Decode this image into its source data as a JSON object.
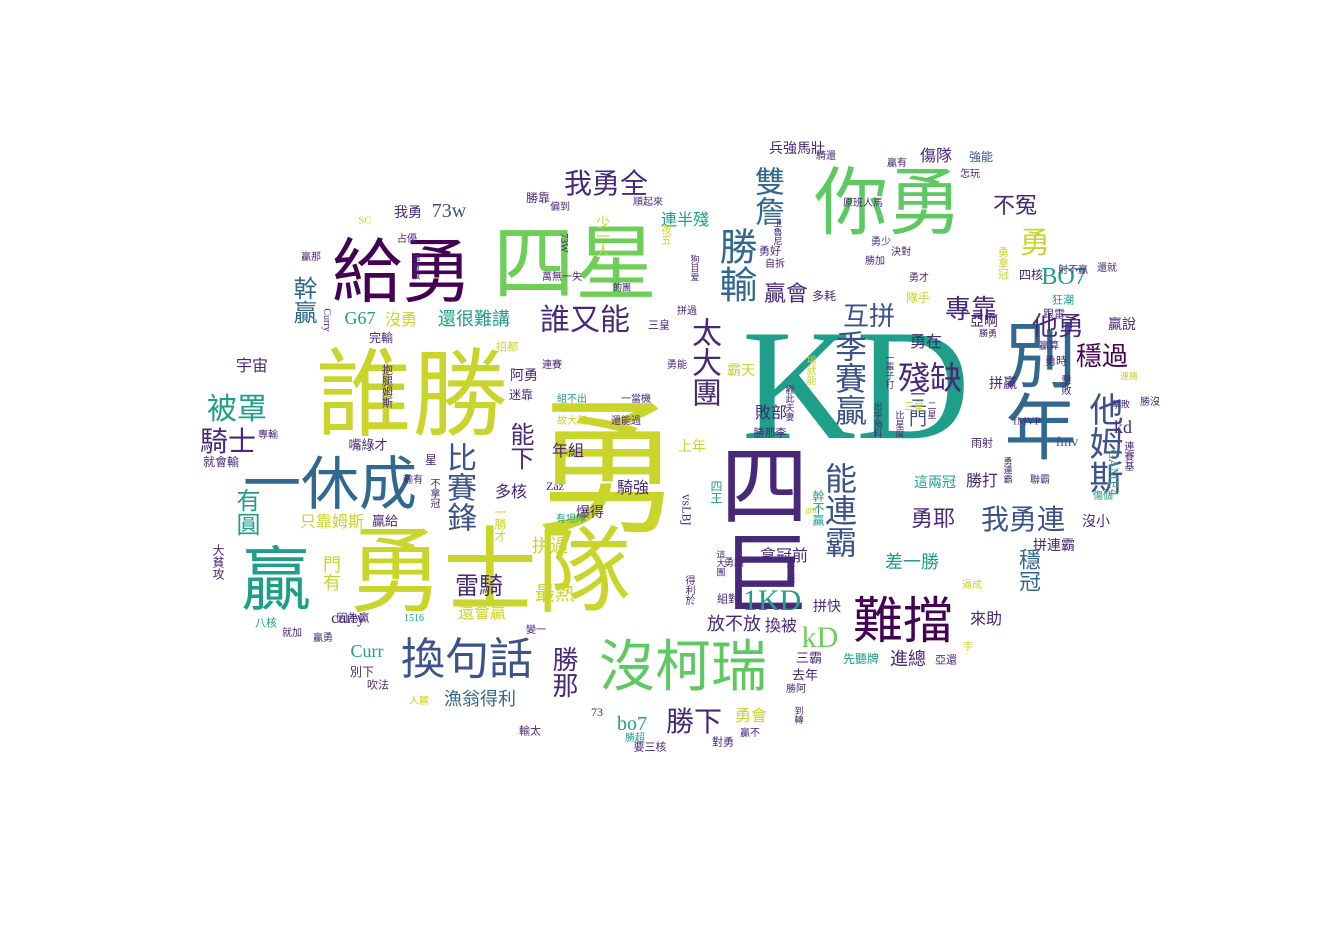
{
  "palette": {
    "p0": "#440154",
    "p1": "#3b528b",
    "p2": "#21918c",
    "p3": "#5ec962",
    "p4": "#c9d52a",
    "p5": "#31688e",
    "p6": "#1f9e89",
    "p7": "#482878",
    "p8": "#6ece58",
    "p9": "#b5de2b",
    "pa": "#26828e",
    "pb": "#3e4a89"
  },
  "words": [
    {
      "text": "KD",
      "c": "p6",
      "lat": true
    },
    {
      "text": "勇",
      "c": "p4"
    },
    {
      "text": "誰勝",
      "c": "p4"
    },
    {
      "text": "勇士隊",
      "c": "p4"
    },
    {
      "text": "四巨",
      "c": "p7"
    },
    {
      "text": "四星",
      "c": "p8"
    },
    {
      "text": "你勇",
      "c": "p3"
    },
    {
      "text": "給勇",
      "c": "p0"
    },
    {
      "text": "別年",
      "c": "p5"
    },
    {
      "text": "一休成",
      "c": "p5"
    },
    {
      "text": "沒柯瑞",
      "c": "p3"
    },
    {
      "text": "換句話",
      "c": "p1"
    },
    {
      "text": "難擋",
      "c": "p0"
    },
    {
      "text": "贏",
      "c": "p6"
    },
    {
      "text": "勝輸",
      "c": "p5"
    },
    {
      "text": "他姆斯",
      "c": "p1"
    },
    {
      "text": "誰又能",
      "c": "p7"
    },
    {
      "text": "我勇全",
      "c": "p7"
    },
    {
      "text": "雙詹",
      "c": "p5"
    },
    {
      "text": "比賽鋒",
      "c": "p1"
    },
    {
      "text": "太大團",
      "c": "p7"
    },
    {
      "text": "季賽贏",
      "c": "p1"
    },
    {
      "text": "殘缺",
      "c": "p7"
    },
    {
      "text": "能連霸",
      "c": "p1"
    },
    {
      "text": "我勇連",
      "c": "p1"
    },
    {
      "text": "專靠",
      "c": "p7"
    },
    {
      "text": "互拼",
      "c": "p1"
    },
    {
      "text": "贏會",
      "c": "p7"
    },
    {
      "text": "他勇",
      "c": "p7"
    },
    {
      "text": "穩過",
      "c": "p0"
    },
    {
      "text": "不冤",
      "c": "p7"
    },
    {
      "text": "勇",
      "c": "p4"
    },
    {
      "text": "BO7",
      "c": "p6",
      "lat": true
    },
    {
      "text": "被罩",
      "c": "p6"
    },
    {
      "text": "騎士",
      "c": "p7"
    },
    {
      "text": "幹贏",
      "c": "p5"
    },
    {
      "text": "有圓",
      "c": "p6"
    },
    {
      "text": "能下",
      "c": "p7"
    },
    {
      "text": "1KD",
      "c": "p6",
      "lat": true
    },
    {
      "text": "kD",
      "c": "p8",
      "lat": true
    },
    {
      "text": "雷騎",
      "c": "p7"
    },
    {
      "text": "勝下",
      "c": "p7"
    },
    {
      "text": "勝那",
      "c": "p7"
    },
    {
      "text": "漁翁得利",
      "c": "p5"
    },
    {
      "text": "勇耶",
      "c": "p7"
    },
    {
      "text": "穩冠",
      "c": "p5"
    },
    {
      "text": "73w",
      "c": "p1",
      "lat": true
    },
    {
      "text": "我勇",
      "c": "p7"
    },
    {
      "text": "連半殘",
      "c": "p6"
    },
    {
      "text": "兵強馬壯",
      "c": "p7"
    },
    {
      "text": "傷隊",
      "c": "p7"
    },
    {
      "text": "強能",
      "c": "p1"
    },
    {
      "text": "G67",
      "c": "p6",
      "lat": true
    },
    {
      "text": "沒勇",
      "c": "p4"
    },
    {
      "text": "還很難講",
      "c": "p6"
    },
    {
      "text": "宇宙",
      "c": "p7"
    },
    {
      "text": "完輸",
      "c": "p7"
    },
    {
      "text": "阿勇",
      "c": "p7"
    },
    {
      "text": "年組",
      "c": "p7"
    },
    {
      "text": "多核",
      "c": "p7"
    },
    {
      "text": "騎強",
      "c": "p7"
    },
    {
      "text": "最熱",
      "c": "p4"
    },
    {
      "text": "拼過",
      "c": "p4"
    },
    {
      "text": "curry",
      "c": "p7",
      "lat": true
    },
    {
      "text": "Curr",
      "c": "p6",
      "lat": true
    },
    {
      "text": "放不放",
      "c": "p7"
    },
    {
      "text": "換被",
      "c": "p7"
    },
    {
      "text": "拿冠前",
      "c": "p7"
    },
    {
      "text": "差一勝",
      "c": "p6"
    },
    {
      "text": "這兩冠",
      "c": "p6"
    },
    {
      "text": "勝打",
      "c": "p7"
    },
    {
      "text": "敗部",
      "c": "p7"
    },
    {
      "text": "上年",
      "c": "p4"
    },
    {
      "text": "勇在",
      "c": "p7"
    },
    {
      "text": "霸天",
      "c": "p4"
    },
    {
      "text": "進總",
      "c": "p7"
    },
    {
      "text": "來助",
      "c": "p7"
    },
    {
      "text": "勇會",
      "c": "p4"
    },
    {
      "text": "bo7",
      "c": "p6",
      "lat": true
    },
    {
      "text": "kd",
      "c": "p7",
      "lat": true
    },
    {
      "text": "fmv",
      "c": "p1",
      "lat": true
    },
    {
      "text": "贏說",
      "c": "p7"
    },
    {
      "text": "拼贏",
      "c": "p7"
    },
    {
      "text": "亞啊",
      "c": "p7"
    },
    {
      "text": "門有",
      "c": "p4"
    },
    {
      "text": "只靠姆斯",
      "c": "p4"
    },
    {
      "text": "三門",
      "c": "p1"
    },
    {
      "text": "拼連霸",
      "c": "p7"
    },
    {
      "text": "沒小",
      "c": "p7"
    },
    {
      "text": "GAME4",
      "c": "p6",
      "lat": true
    },
    {
      "text": "fMVP",
      "c": "p7",
      "lat": true
    },
    {
      "text": "Zaz",
      "c": "p7",
      "lat": true
    },
    {
      "text": "vsLBJ",
      "c": "p7",
      "lat": true
    },
    {
      "text": "還會贏",
      "c": "p4"
    },
    {
      "text": "拼快",
      "c": "p7"
    },
    {
      "text": "三霸",
      "c": "p7"
    },
    {
      "text": "去年",
      "c": "p7"
    },
    {
      "text": "先聽牌",
      "c": "p6"
    },
    {
      "text": "嘴綠才",
      "c": "p7"
    },
    {
      "text": "贏給",
      "c": "p7"
    },
    {
      "text": "就會輸",
      "c": "p7"
    },
    {
      "text": "大貧攻",
      "c": "p7"
    },
    {
      "text": "八核",
      "c": "p6"
    },
    {
      "text": "因為贏",
      "c": "p7"
    },
    {
      "text": "別下",
      "c": "p7"
    },
    {
      "text": "吹法",
      "c": "p7"
    },
    {
      "text": "人麓",
      "c": "p4"
    },
    {
      "text": "73",
      "c": "p7",
      "lat": true
    },
    {
      "text": "輸太",
      "c": "p7"
    },
    {
      "text": "要三核",
      "c": "p7"
    },
    {
      "text": "對勇",
      "c": "p7"
    },
    {
      "text": "勝超",
      "c": "p6"
    },
    {
      "text": "勝阿",
      "c": "p7"
    },
    {
      "text": "爆得",
      "c": "p7"
    },
    {
      "text": "四王",
      "c": "p6"
    },
    {
      "text": "幹不贏",
      "c": "p6"
    },
    {
      "text": "多耗",
      "c": "p7"
    },
    {
      "text": "隊手",
      "c": "p4"
    },
    {
      "text": "勇拿冠",
      "c": "p4"
    },
    {
      "text": "四核",
      "c": "p7"
    },
    {
      "text": "狂潮",
      "c": "p6"
    },
    {
      "text": "跟雷",
      "c": "p7"
    },
    {
      "text": "贏算",
      "c": "p7"
    },
    {
      "text": "勇時",
      "c": "p7"
    },
    {
      "text": "勝沒",
      "c": "p7"
    },
    {
      "text": "撃敗",
      "c": "p7"
    },
    {
      "text": "雨射",
      "c": "p7"
    },
    {
      "text": "射不贏",
      "c": "p7"
    },
    {
      "text": "還就",
      "c": "p7"
    },
    {
      "text": "贏有",
      "c": "p7"
    },
    {
      "text": "怎玩",
      "c": "p7"
    },
    {
      "text": "騎還",
      "c": "p7"
    },
    {
      "text": "原班人馬",
      "c": "p7"
    },
    {
      "text": "勇少",
      "c": "p7"
    },
    {
      "text": "勇好",
      "c": "p7"
    },
    {
      "text": "勇才",
      "c": "p7"
    },
    {
      "text": "決對",
      "c": "p7"
    },
    {
      "text": "勝加",
      "c": "p7"
    },
    {
      "text": "自拆",
      "c": "p7"
    },
    {
      "text": "勝靠",
      "c": "p7"
    },
    {
      "text": "偏到",
      "c": "p7"
    },
    {
      "text": "順起來",
      "c": "p7"
    },
    {
      "text": "夜五",
      "c": "p4"
    },
    {
      "text": "少一人",
      "c": "p4"
    },
    {
      "text": "萬無一失",
      "c": "p7"
    },
    {
      "text": "拼過",
      "c": "p7"
    },
    {
      "text": "三皇",
      "c": "p7"
    },
    {
      "text": "三星",
      "c": "p4"
    },
    {
      "text": "SC",
      "c": "p4",
      "lat": true
    },
    {
      "text": "占優",
      "c": "p7"
    },
    {
      "text": "贏那",
      "c": "p7"
    },
    {
      "text": "招都",
      "c": "p4"
    },
    {
      "text": "連賽",
      "c": "p7"
    },
    {
      "text": "迷靠",
      "c": "p7"
    },
    {
      "text": "組不出",
      "c": "p6"
    },
    {
      "text": "一當機",
      "c": "p7"
    },
    {
      "text": "故大幫",
      "c": "p4"
    },
    {
      "text": "還能過",
      "c": "p7"
    },
    {
      "text": "抱腿姆斯",
      "c": "p7"
    },
    {
      "text": "專輸",
      "c": "p7"
    },
    {
      "text": "星",
      "c": "p7"
    },
    {
      "text": "不拿冠",
      "c": "p7"
    },
    {
      "text": "一勝才",
      "c": "p4"
    },
    {
      "text": "1516",
      "c": "p6",
      "lat": true
    },
    {
      "text": "變一",
      "c": "p7"
    },
    {
      "text": "有坦隊",
      "c": "p6"
    },
    {
      "text": "得利於",
      "c": "p7"
    },
    {
      "text": "組對",
      "c": "p7"
    },
    {
      "text": "勇讓",
      "c": "p7"
    },
    {
      "text": "逼成",
      "c": "p4"
    },
    {
      "text": "亞還",
      "c": "p7"
    },
    {
      "text": "宇",
      "c": "p4"
    },
    {
      "text": "贏不",
      "c": "p7"
    },
    {
      "text": "聯霸",
      "c": "p7"
    },
    {
      "text": "傷個",
      "c": "p6"
    },
    {
      "text": "連賽基",
      "c": "p7"
    },
    {
      "text": "勇能",
      "c": "p7"
    },
    {
      "text": "就加",
      "c": "p7"
    },
    {
      "text": "贏勇",
      "c": "p7"
    },
    {
      "text": "73W",
      "c": "p7",
      "lat": true
    },
    {
      "text": "還會復",
      "c": "p7"
    },
    {
      "text": "Curry",
      "c": "p7",
      "lat": true
    },
    {
      "text": "輸有",
      "c": "p7"
    },
    {
      "text": "上魯尼",
      "c": "p7"
    },
    {
      "text": "勇連霸",
      "c": "p7"
    },
    {
      "text": "的團",
      "c": "p7"
    },
    {
      "text": "狗目爱",
      "c": "p7"
    },
    {
      "text": "比星度",
      "c": "p7"
    },
    {
      "text": "出乎預料",
      "c": "p7"
    },
    {
      "text": "二星",
      "c": "p7"
    },
    {
      "text": "觀此夫妻",
      "c": "p7"
    },
    {
      "text": "場就能",
      "c": "p4"
    },
    {
      "text": "勝那李",
      "c": "p7"
    },
    {
      "text": "一輩子打",
      "c": "p7"
    },
    {
      "text": "到轉",
      "c": "p7"
    },
    {
      "text": "可差",
      "c": "p7"
    },
    {
      "text": "這大團",
      "c": "p7"
    },
    {
      "text": "勝勇",
      "c": "p7"
    },
    {
      "text": "擊敗",
      "c": "p7"
    },
    {
      "text": "gm",
      "c": "p4",
      "lat": true
    },
    {
      "text": "連勝",
      "c": "p4"
    }
  ]
}
